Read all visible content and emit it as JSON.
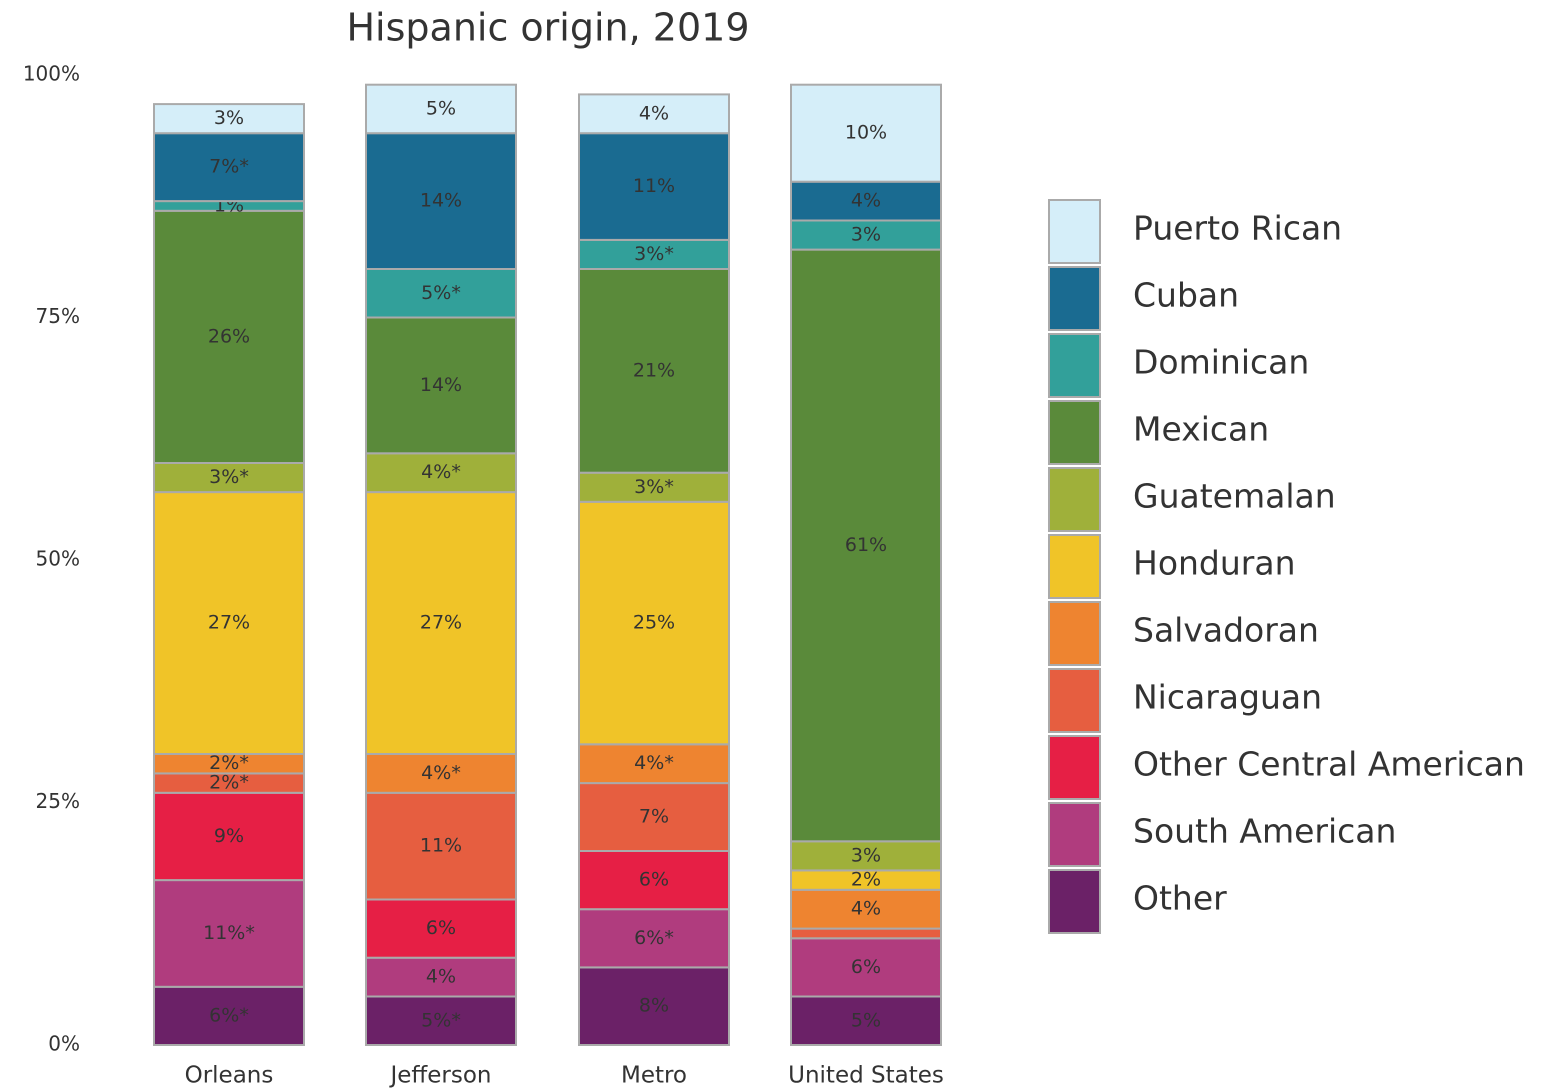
{
  "chart_data": {
    "type": "stacked-bar",
    "title": "Hispanic origin, 2019",
    "categories": [
      "Orleans",
      "Jefferson",
      "Metro",
      "United States"
    ],
    "ylim": [
      0,
      100
    ],
    "yticks": [
      {
        "value": 0,
        "label": "0%"
      },
      {
        "value": 25,
        "label": "25%"
      },
      {
        "value": 50,
        "label": "50%"
      },
      {
        "value": 75,
        "label": "75%"
      },
      {
        "value": 100,
        "label": "100%"
      }
    ],
    "series": [
      {
        "name": "Puerto Rican",
        "color": "#d5eef9",
        "values": [
          3,
          5,
          4,
          10
        ],
        "value_labels": [
          "3%",
          "5%",
          "4%",
          "10%"
        ]
      },
      {
        "name": "Cuban",
        "color": "#1a6b91",
        "values": [
          7,
          14,
          11,
          4
        ],
        "value_labels": [
          "7%*",
          "14%",
          "11%",
          "4%"
        ]
      },
      {
        "name": "Dominican",
        "color": "#32a09a",
        "values": [
          1,
          5,
          3,
          3
        ],
        "value_labels": [
          "1%",
          "5%*",
          "3%*",
          "3%"
        ]
      },
      {
        "name": "Mexican",
        "color": "#5a8a3a",
        "values": [
          26,
          14,
          21,
          61
        ],
        "value_labels": [
          "26%",
          "14%",
          "21%",
          "61%"
        ]
      },
      {
        "name": "Guatemalan",
        "color": "#9fb03a",
        "values": [
          3,
          4,
          3,
          3
        ],
        "value_labels": [
          "3%*",
          "4%*",
          "3%*",
          "3%"
        ]
      },
      {
        "name": "Honduran",
        "color": "#f0c428",
        "values": [
          27,
          27,
          25,
          2
        ],
        "value_labels": [
          "27%",
          "27%",
          "25%",
          "2%"
        ]
      },
      {
        "name": "Salvadoran",
        "color": "#ee8430",
        "values": [
          2,
          4,
          4,
          4
        ],
        "value_labels": [
          "2%*",
          "4%*",
          "4%*",
          "4%"
        ]
      },
      {
        "name": "Nicaraguan",
        "color": "#e65e40",
        "values": [
          2,
          11,
          7,
          1
        ],
        "value_labels": [
          "2%*",
          "11%",
          "7%",
          null
        ]
      },
      {
        "name": "Other Central American",
        "color": "#e61f45",
        "values": [
          9,
          6,
          6,
          0
        ],
        "value_labels": [
          "9%",
          "6%",
          "6%",
          null
        ]
      },
      {
        "name": "South American",
        "color": "#b03c7e",
        "values": [
          11,
          4,
          6,
          6
        ],
        "value_labels": [
          "11%*",
          "4%",
          "6%*",
          "6%"
        ]
      },
      {
        "name": "Other",
        "color": "#6b2167",
        "values": [
          6,
          5,
          8,
          5
        ],
        "value_labels": [
          "6%*",
          "5%*",
          "8%",
          "5%"
        ]
      }
    ]
  }
}
